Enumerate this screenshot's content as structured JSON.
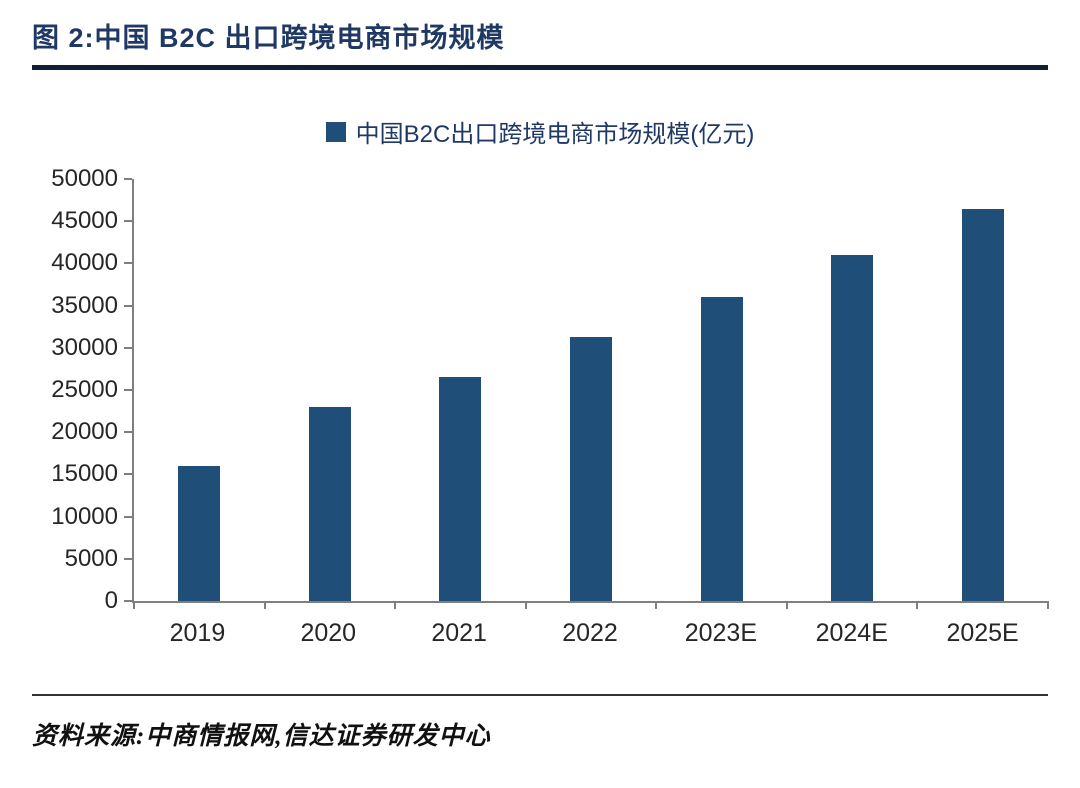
{
  "header": {
    "title": "图 2:中国 B2C 出口跨境电商市场规模"
  },
  "chart_data": {
    "type": "bar",
    "title": "中国B2C出口跨境电商市场规模(亿元)",
    "legend": "中国B2C出口跨境电商市场规模(亿元)",
    "legend_position": "top",
    "categories": [
      "2019",
      "2020",
      "2021",
      "2022",
      "2023E",
      "2024E",
      "2025E"
    ],
    "values": [
      16000,
      23000,
      26600,
      31300,
      36000,
      41000,
      46400
    ],
    "xlabel": "",
    "ylabel": "",
    "ylim": [
      0,
      50000
    ],
    "ytick_step": 5000,
    "grid": false,
    "bar_color": "#1f4e79",
    "axis_color": "#7f7f7f"
  },
  "footer": {
    "source": "资料来源:中商情报网,信达证券研发中心"
  }
}
